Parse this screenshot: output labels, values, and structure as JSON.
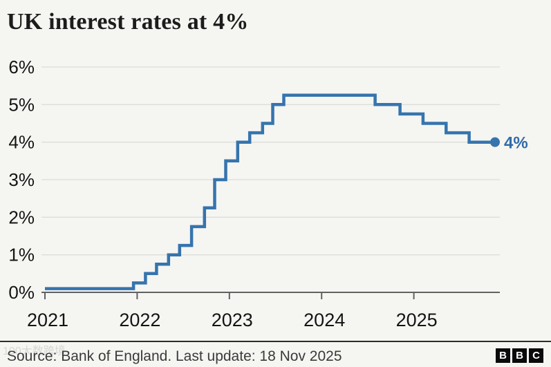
{
  "header": {
    "title": "UK interest rates at 4%"
  },
  "footer": {
    "source": "Source: Bank of England. Last update: 18 Nov 2025",
    "logo_letters": [
      "B",
      "B",
      "C"
    ]
  },
  "watermark": {
    "text": "100大数跨境"
  },
  "colors": {
    "background": "#f5f5f2",
    "line": "#3674ad",
    "end_label": "#2f6ba8",
    "grid": "#dcdcda",
    "axis": "#616161",
    "tick_label": "#141414",
    "title_text": "#1c1c1b",
    "source_text": "#3a3a3a",
    "logo_black": "#0a0a0a"
  },
  "chart_data": {
    "type": "line",
    "step": true,
    "title": "UK interest rates at 4%",
    "xlabel": "",
    "ylabel": "",
    "xlim": [
      2021,
      2025.88
    ],
    "ylim": [
      0,
      6
    ],
    "grid": true,
    "legend": "none",
    "x_ticks": {
      "values": [
        2021,
        2022,
        2023,
        2024,
        2025
      ],
      "labels": [
        "2021",
        "2022",
        "2023",
        "2024",
        "2025"
      ]
    },
    "y_ticks": {
      "values": [
        0,
        1,
        2,
        3,
        4,
        5,
        6
      ],
      "labels": [
        "0%",
        "1%",
        "2%",
        "3%",
        "4%",
        "5%",
        "6%"
      ]
    },
    "series": [
      {
        "name": "UK interest rate",
        "x": [
          2021.0,
          2021.96,
          2022.09,
          2022.21,
          2022.34,
          2022.46,
          2022.59,
          2022.73,
          2022.84,
          2022.96,
          2023.09,
          2023.22,
          2023.36,
          2023.47,
          2023.59,
          2024.58,
          2024.85,
          2025.1,
          2025.35,
          2025.6,
          2025.88
        ],
        "y": [
          0.1,
          0.25,
          0.5,
          0.75,
          1.0,
          1.25,
          1.75,
          2.25,
          3.0,
          3.5,
          4.0,
          4.25,
          4.5,
          5.0,
          5.25,
          5.0,
          4.75,
          4.5,
          4.25,
          4.0,
          4.0
        ]
      }
    ],
    "end_annotation": {
      "label": "4%",
      "value": 4.0
    }
  }
}
